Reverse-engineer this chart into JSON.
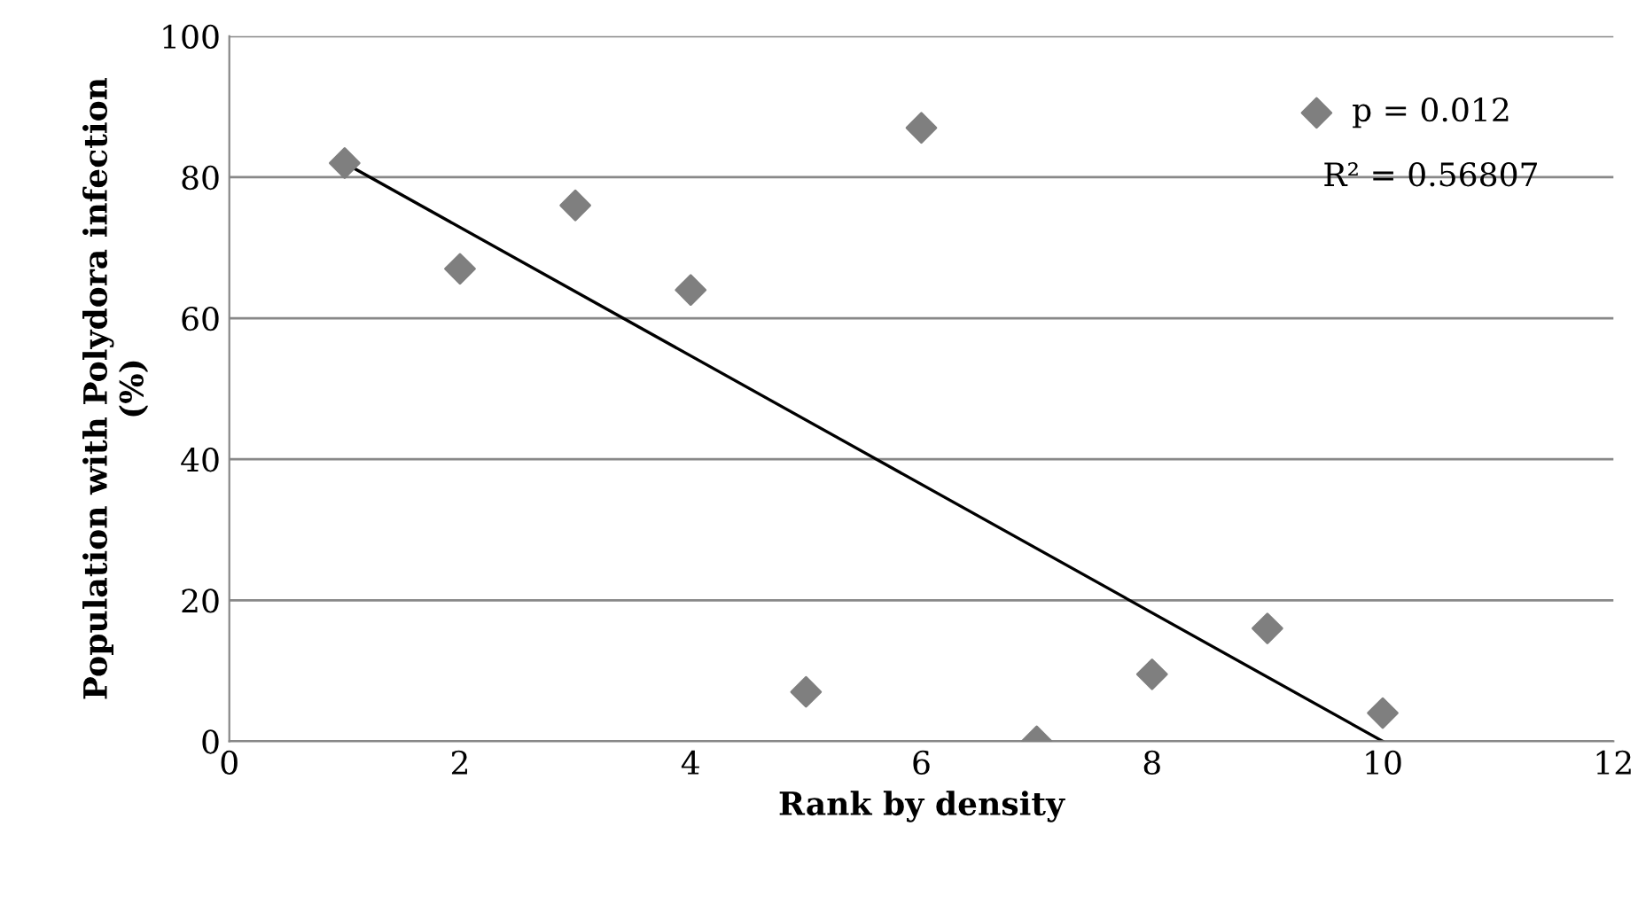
{
  "chart_data": {
    "type": "scatter",
    "xlabel": "Rank by density",
    "ylabel": "Population with Polydora infection\n(%)",
    "xlim": [
      0,
      12
    ],
    "xticks": [
      0,
      2,
      4,
      6,
      8,
      10,
      12
    ],
    "ylim": [
      0,
      100
    ],
    "yticks": [
      0,
      20,
      40,
      60,
      80,
      100
    ],
    "grid": "y",
    "legend": "top right",
    "series": [
      {
        "name": "p = 0.012",
        "color": "#7f7f7f",
        "marker": "diamond",
        "x": [
          1,
          2,
          3,
          4,
          5,
          6,
          7,
          8,
          9,
          10
        ],
        "values": [
          82,
          67,
          76,
          64,
          7,
          87,
          0,
          9.5,
          16,
          4
        ]
      },
      {
        "type": "line",
        "color": "#000000",
        "marker": "none",
        "x": [
          1,
          10
        ],
        "values": [
          82,
          0
        ]
      }
    ],
    "annotations": [
      "R² = 0.56807"
    ]
  }
}
